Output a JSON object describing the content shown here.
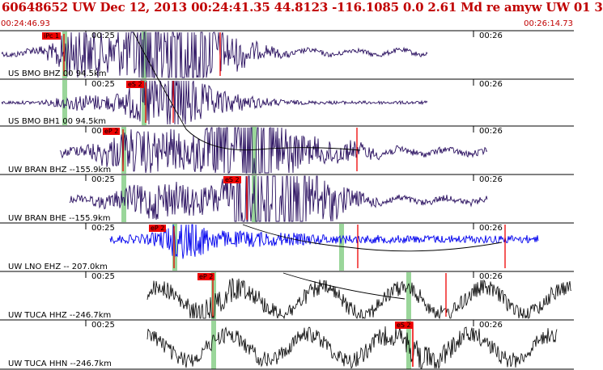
{
  "header": {
    "title": "60648652  UW Dec 12, 2013 00:24:41.35    44.8123  -116.1085   0.0  2.61  Md  re  amyw UW 01    3",
    "time_start": "00:24:46.93",
    "time_end": "00:26:14.73"
  },
  "colors": {
    "title": "#c00000",
    "waveform_dark": "#2a1060",
    "waveform_blue": "#0000ee",
    "waveform_black": "#000000",
    "pick_line": "#ee0000",
    "window_shade": "#9ad69a"
  },
  "traces": [
    {
      "label": "US BMO BHZ 00  94.5km",
      "tick_left": "00:25",
      "tick_right": "00:26",
      "pick": "iPc 1",
      "color": "#2a1060"
    },
    {
      "label": "US BMO BH1 00  94.5km",
      "tick_left": "00:25",
      "tick_right": "00:26",
      "pick": "eS 2",
      "color": "#2a1060"
    },
    {
      "label": "UW BRAN BHZ --155.9km",
      "tick_left": "00:25",
      "tick_right": "00:26",
      "pick": "eP 2",
      "color": "#2a1060"
    },
    {
      "label": "UW BRAN BHE --155.9km",
      "tick_left": "00:25",
      "tick_right": "00:26",
      "pick": "eS 2",
      "color": "#2a1060"
    },
    {
      "label": "UW LNO EHZ -- 207.0km",
      "tick_left": "00:25",
      "tick_right": "00:26",
      "pick": "eP 2",
      "color": "#0000ee"
    },
    {
      "label": "UW TUCA HHZ --246.7km",
      "tick_left": "00:25",
      "tick_right": "00:26",
      "pick": "eP 2",
      "color": "#000000"
    },
    {
      "label": "UW TUCA HHN --246.7km",
      "tick_left": "00:25",
      "tick_right": "00:26",
      "pick": "eS 2",
      "color": "#000000"
    }
  ]
}
